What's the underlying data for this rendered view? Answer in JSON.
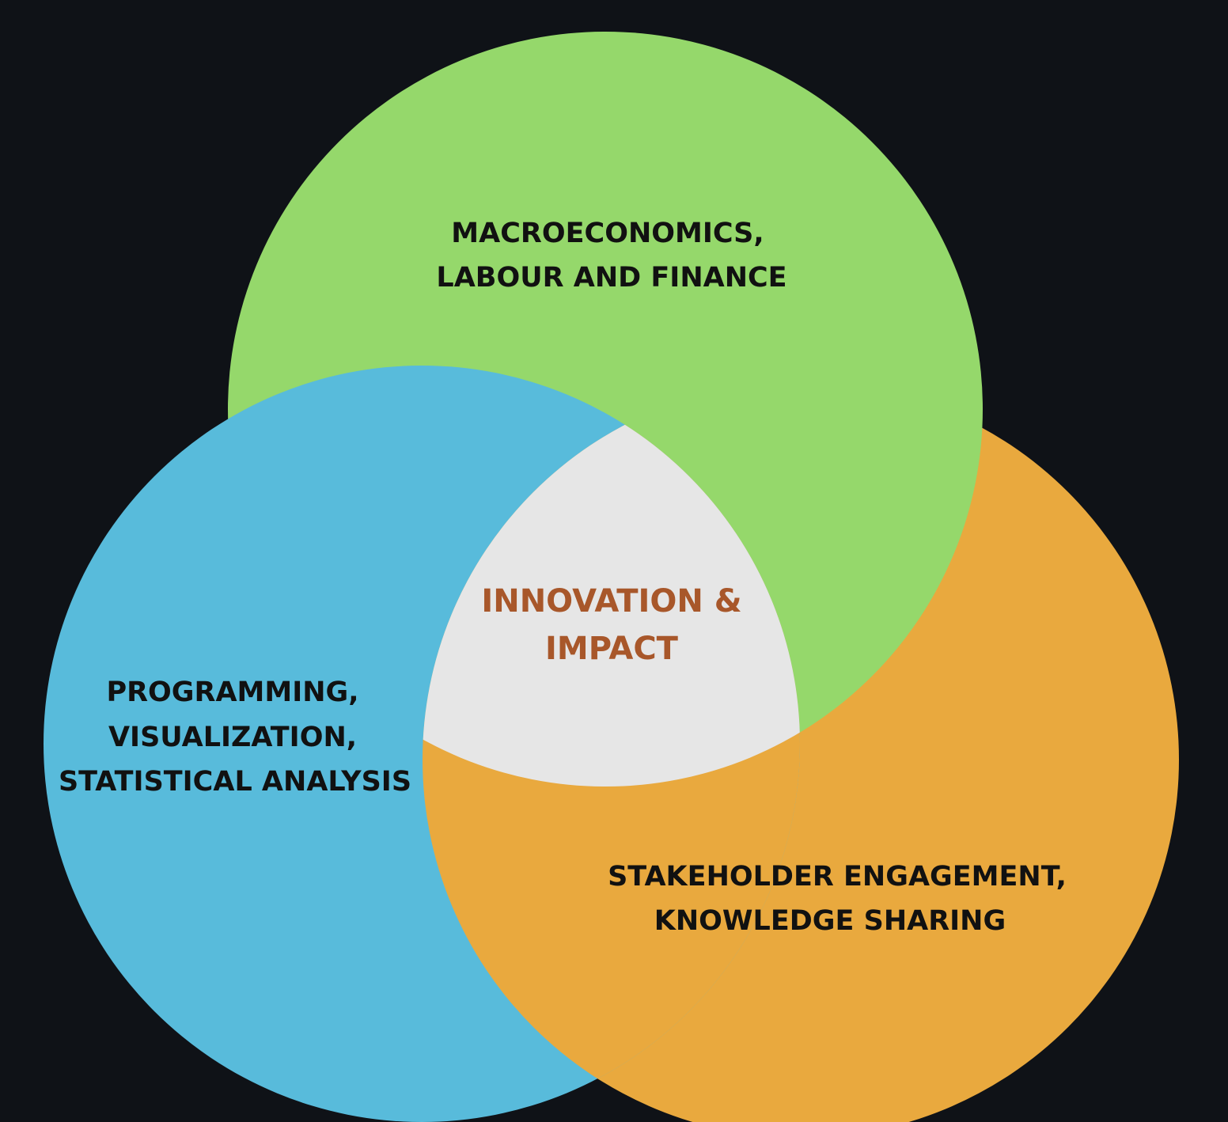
{
  "colors": {
    "background": "#0f1217",
    "green": "#95d86b",
    "blue": "#58bbdb",
    "orange": "#e9a93e",
    "center": "#e6e6e6",
    "label_text": "#111111",
    "center_text": "#a8572a"
  },
  "circles": {
    "top": {
      "line1": "MACROECONOMICS,",
      "line2": "LABOUR AND FINANCE"
    },
    "left": {
      "line1": "PROGRAMMING,",
      "line2": "VISUALIZATION,",
      "line3": "STATISTICAL ANALYSIS"
    },
    "right": {
      "line1": "STAKEHOLDER ENGAGEMENT,",
      "line2": "KNOWLEDGE SHARING"
    }
  },
  "center": {
    "line1": "INNOVATION &",
    "line2": "IMPACT"
  }
}
